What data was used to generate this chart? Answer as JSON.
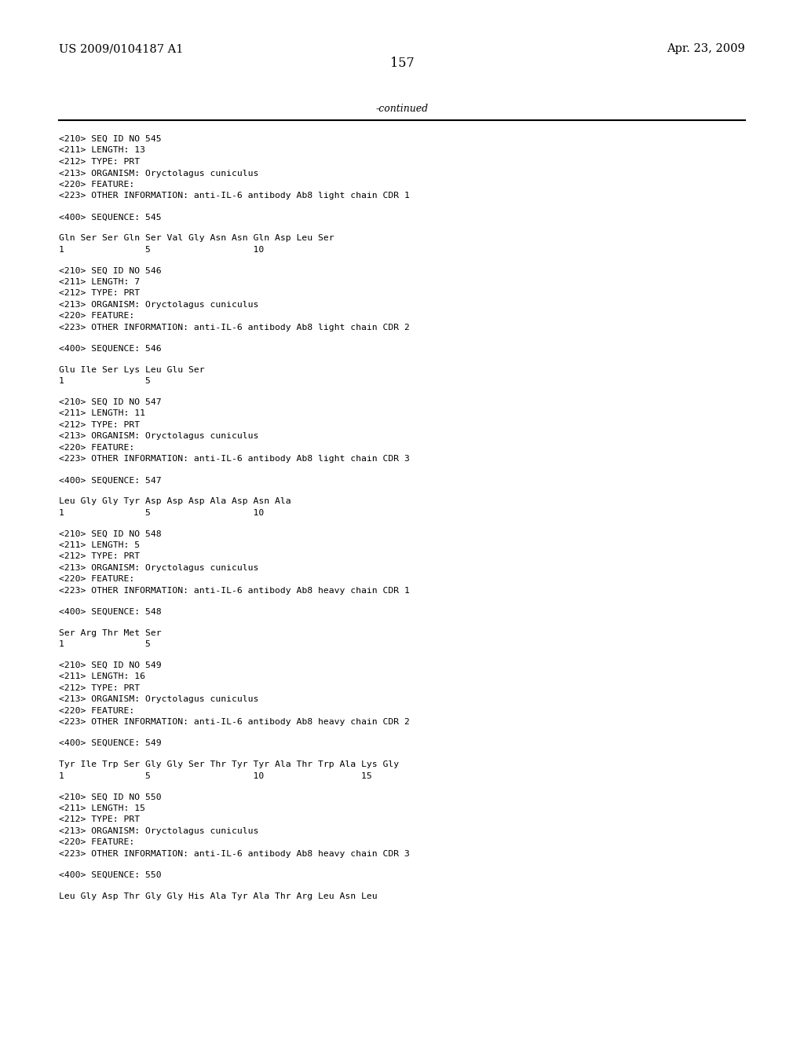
{
  "patent_number": "US 2009/0104187 A1",
  "date": "Apr. 23, 2009",
  "page_number": "157",
  "continued_label": "-continued",
  "background_color": "#ffffff",
  "text_color": "#000000",
  "header_font_size": 10.5,
  "body_font_size": 8.5,
  "mono_font_size": 8.2,
  "lines": [
    "<210> SEQ ID NO 545",
    "<211> LENGTH: 13",
    "<212> TYPE: PRT",
    "<213> ORGANISM: Oryctolagus cuniculus",
    "<220> FEATURE:",
    "<223> OTHER INFORMATION: anti-IL-6 antibody Ab8 light chain CDR 1",
    "",
    "<400> SEQUENCE: 545",
    "",
    "Gln Ser Ser Gln Ser Val Gly Asn Asn Gln Asp Leu Ser",
    "1               5                   10",
    "",
    "<210> SEQ ID NO 546",
    "<211> LENGTH: 7",
    "<212> TYPE: PRT",
    "<213> ORGANISM: Oryctolagus cuniculus",
    "<220> FEATURE:",
    "<223> OTHER INFORMATION: anti-IL-6 antibody Ab8 light chain CDR 2",
    "",
    "<400> SEQUENCE: 546",
    "",
    "Glu Ile Ser Lys Leu Glu Ser",
    "1               5",
    "",
    "<210> SEQ ID NO 547",
    "<211> LENGTH: 11",
    "<212> TYPE: PRT",
    "<213> ORGANISM: Oryctolagus cuniculus",
    "<220> FEATURE:",
    "<223> OTHER INFORMATION: anti-IL-6 antibody Ab8 light chain CDR 3",
    "",
    "<400> SEQUENCE: 547",
    "",
    "Leu Gly Gly Tyr Asp Asp Asp Ala Asp Asn Ala",
    "1               5                   10",
    "",
    "<210> SEQ ID NO 548",
    "<211> LENGTH: 5",
    "<212> TYPE: PRT",
    "<213> ORGANISM: Oryctolagus cuniculus",
    "<220> FEATURE:",
    "<223> OTHER INFORMATION: anti-IL-6 antibody Ab8 heavy chain CDR 1",
    "",
    "<400> SEQUENCE: 548",
    "",
    "Ser Arg Thr Met Ser",
    "1               5",
    "",
    "<210> SEQ ID NO 549",
    "<211> LENGTH: 16",
    "<212> TYPE: PRT",
    "<213> ORGANISM: Oryctolagus cuniculus",
    "<220> FEATURE:",
    "<223> OTHER INFORMATION: anti-IL-6 antibody Ab8 heavy chain CDR 2",
    "",
    "<400> SEQUENCE: 549",
    "",
    "Tyr Ile Trp Ser Gly Gly Ser Thr Tyr Tyr Ala Thr Trp Ala Lys Gly",
    "1               5                   10                  15",
    "",
    "<210> SEQ ID NO 550",
    "<211> LENGTH: 15",
    "<212> TYPE: PRT",
    "<213> ORGANISM: Oryctolagus cuniculus",
    "<220> FEATURE:",
    "<223> OTHER INFORMATION: anti-IL-6 antibody Ab8 heavy chain CDR 3",
    "",
    "<400> SEQUENCE: 550",
    "",
    "Leu Gly Asp Thr Gly Gly His Ala Tyr Ala Thr Arg Leu Asn Leu"
  ]
}
